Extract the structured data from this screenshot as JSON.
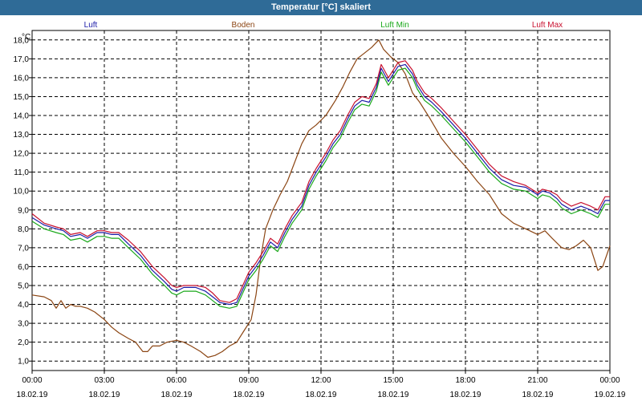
{
  "window": {
    "title": "Temperatur [°C] skaliert"
  },
  "chart_data": {
    "type": "line",
    "title": "Temperatur [°C] skaliert",
    "ylabel": "°C",
    "ylim": [
      0.5,
      18.5
    ],
    "yticks": [
      "1,0",
      "2,0",
      "3,0",
      "4,0",
      "5,0",
      "6,0",
      "7,0",
      "8,0",
      "9,0",
      "10,0",
      "11,0",
      "12,0",
      "13,0",
      "14,0",
      "15,0",
      "16,0",
      "17,0",
      "18,0"
    ],
    "xlim": [
      0,
      24
    ],
    "xticks": [
      {
        "time": "00:00",
        "date": "18.02.19"
      },
      {
        "time": "03:00",
        "date": "18.02.19"
      },
      {
        "time": "06:00",
        "date": "18.02.19"
      },
      {
        "time": "09:00",
        "date": "18.02.19"
      },
      {
        "time": "12:00",
        "date": "18.02.19"
      },
      {
        "time": "15:00",
        "date": "18.02.19"
      },
      {
        "time": "18:00",
        "date": "18.02.19"
      },
      {
        "time": "21:00",
        "date": "18.02.19"
      },
      {
        "time": "00:00",
        "date": "19.02.19"
      }
    ],
    "series": [
      {
        "name": "Luft",
        "color": "#1c1ca8",
        "points": [
          [
            0,
            8.6
          ],
          [
            0.5,
            8.2
          ],
          [
            1,
            8.0
          ],
          [
            1.3,
            7.9
          ],
          [
            1.6,
            7.6
          ],
          [
            2,
            7.7
          ],
          [
            2.3,
            7.5
          ],
          [
            2.7,
            7.8
          ],
          [
            3,
            7.8
          ],
          [
            3.3,
            7.7
          ],
          [
            3.6,
            7.7
          ],
          [
            4,
            7.2
          ],
          [
            4.5,
            6.6
          ],
          [
            5,
            5.8
          ],
          [
            5.5,
            5.2
          ],
          [
            5.8,
            4.8
          ],
          [
            6,
            4.7
          ],
          [
            6.3,
            4.9
          ],
          [
            6.8,
            4.9
          ],
          [
            7.2,
            4.7
          ],
          [
            7.5,
            4.4
          ],
          [
            7.8,
            4.1
          ],
          [
            8.2,
            4.0
          ],
          [
            8.5,
            4.1
          ],
          [
            9,
            5.5
          ],
          [
            9.3,
            6.0
          ],
          [
            9.6,
            6.6
          ],
          [
            9.9,
            7.3
          ],
          [
            10.2,
            7.0
          ],
          [
            10.5,
            7.8
          ],
          [
            10.8,
            8.5
          ],
          [
            11.2,
            9.2
          ],
          [
            11.5,
            10.3
          ],
          [
            11.8,
            11.0
          ],
          [
            12.2,
            11.8
          ],
          [
            12.5,
            12.5
          ],
          [
            12.8,
            13.0
          ],
          [
            13.1,
            13.8
          ],
          [
            13.4,
            14.5
          ],
          [
            13.7,
            14.8
          ],
          [
            14,
            14.7
          ],
          [
            14.3,
            15.5
          ],
          [
            14.5,
            16.5
          ],
          [
            14.8,
            15.8
          ],
          [
            15,
            16.2
          ],
          [
            15.2,
            16.6
          ],
          [
            15.5,
            16.7
          ],
          [
            15.8,
            16.2
          ],
          [
            16,
            15.6
          ],
          [
            16.3,
            15.0
          ],
          [
            16.6,
            14.7
          ],
          [
            17,
            14.2
          ],
          [
            17.5,
            13.5
          ],
          [
            18,
            12.8
          ],
          [
            18.5,
            12.0
          ],
          [
            19,
            11.2
          ],
          [
            19.5,
            10.6
          ],
          [
            20,
            10.3
          ],
          [
            20.5,
            10.2
          ],
          [
            21,
            9.8
          ],
          [
            21.2,
            10.0
          ],
          [
            21.5,
            9.9
          ],
          [
            21.8,
            9.6
          ],
          [
            22,
            9.3
          ],
          [
            22.4,
            9.0
          ],
          [
            22.8,
            9.2
          ],
          [
            23.2,
            9.0
          ],
          [
            23.5,
            8.8
          ],
          [
            23.8,
            9.5
          ],
          [
            24,
            9.5
          ]
        ]
      },
      {
        "name": "Boden",
        "color": "#8b4513",
        "points": [
          [
            0,
            4.5
          ],
          [
            0.5,
            4.4
          ],
          [
            0.8,
            4.2
          ],
          [
            1,
            3.8
          ],
          [
            1.2,
            4.2
          ],
          [
            1.4,
            3.8
          ],
          [
            1.6,
            4.0
          ],
          [
            1.8,
            3.9
          ],
          [
            2,
            3.9
          ],
          [
            2.3,
            3.8
          ],
          [
            2.6,
            3.6
          ],
          [
            3,
            3.2
          ],
          [
            3.3,
            2.8
          ],
          [
            3.6,
            2.5
          ],
          [
            4,
            2.2
          ],
          [
            4.3,
            2.0
          ],
          [
            4.6,
            1.5
          ],
          [
            4.8,
            1.5
          ],
          [
            5,
            1.8
          ],
          [
            5.3,
            1.8
          ],
          [
            5.6,
            2.0
          ],
          [
            6,
            2.1
          ],
          [
            6.3,
            2.0
          ],
          [
            6.6,
            1.8
          ],
          [
            7,
            1.5
          ],
          [
            7.3,
            1.2
          ],
          [
            7.6,
            1.3
          ],
          [
            7.9,
            1.5
          ],
          [
            8.2,
            1.8
          ],
          [
            8.5,
            2.0
          ],
          [
            8.8,
            2.6
          ],
          [
            9.1,
            3.2
          ],
          [
            9.3,
            4.5
          ],
          [
            9.5,
            6.5
          ],
          [
            9.7,
            8.0
          ],
          [
            10,
            9.0
          ],
          [
            10.3,
            9.8
          ],
          [
            10.6,
            10.5
          ],
          [
            10.9,
            11.5
          ],
          [
            11.2,
            12.5
          ],
          [
            11.5,
            13.2
          ],
          [
            11.8,
            13.5
          ],
          [
            12.2,
            14.0
          ],
          [
            12.6,
            14.8
          ],
          [
            12.9,
            15.5
          ],
          [
            13.2,
            16.3
          ],
          [
            13.5,
            17.0
          ],
          [
            13.8,
            17.3
          ],
          [
            14.1,
            17.6
          ],
          [
            14.4,
            18.0
          ],
          [
            14.6,
            17.5
          ],
          [
            14.9,
            17.1
          ],
          [
            15.2,
            16.8
          ],
          [
            15.5,
            16.2
          ],
          [
            15.8,
            15.2
          ],
          [
            16.1,
            14.7
          ],
          [
            16.5,
            13.9
          ],
          [
            17,
            12.8
          ],
          [
            17.5,
            12.0
          ],
          [
            18,
            11.3
          ],
          [
            18.5,
            10.5
          ],
          [
            19,
            9.8
          ],
          [
            19.5,
            8.8
          ],
          [
            20,
            8.3
          ],
          [
            20.5,
            8.0
          ],
          [
            21,
            7.7
          ],
          [
            21.3,
            7.9
          ],
          [
            21.6,
            7.5
          ],
          [
            22,
            7.0
          ],
          [
            22.3,
            6.9
          ],
          [
            22.6,
            7.1
          ],
          [
            22.9,
            7.4
          ],
          [
            23.2,
            7.0
          ],
          [
            23.5,
            5.8
          ],
          [
            23.7,
            6.0
          ],
          [
            24,
            7.1
          ]
        ]
      },
      {
        "name": "Luft Min",
        "color": "#1aa81a",
        "points": [
          [
            0,
            8.4
          ],
          [
            0.5,
            8.0
          ],
          [
            1,
            7.8
          ],
          [
            1.3,
            7.7
          ],
          [
            1.6,
            7.4
          ],
          [
            2,
            7.5
          ],
          [
            2.3,
            7.3
          ],
          [
            2.7,
            7.6
          ],
          [
            3,
            7.6
          ],
          [
            3.3,
            7.5
          ],
          [
            3.6,
            7.5
          ],
          [
            4,
            7.0
          ],
          [
            4.5,
            6.4
          ],
          [
            5,
            5.6
          ],
          [
            5.5,
            5.0
          ],
          [
            5.8,
            4.6
          ],
          [
            6,
            4.5
          ],
          [
            6.3,
            4.7
          ],
          [
            6.8,
            4.7
          ],
          [
            7.2,
            4.5
          ],
          [
            7.5,
            4.2
          ],
          [
            7.8,
            3.9
          ],
          [
            8.2,
            3.8
          ],
          [
            8.5,
            3.9
          ],
          [
            9,
            5.3
          ],
          [
            9.3,
            5.8
          ],
          [
            9.6,
            6.4
          ],
          [
            9.9,
            7.1
          ],
          [
            10.2,
            6.8
          ],
          [
            10.5,
            7.6
          ],
          [
            10.8,
            8.3
          ],
          [
            11.2,
            9.0
          ],
          [
            11.5,
            10.1
          ],
          [
            11.8,
            10.8
          ],
          [
            12.2,
            11.6
          ],
          [
            12.5,
            12.3
          ],
          [
            12.8,
            12.8
          ],
          [
            13.1,
            13.6
          ],
          [
            13.4,
            14.3
          ],
          [
            13.7,
            14.6
          ],
          [
            14,
            14.5
          ],
          [
            14.3,
            15.3
          ],
          [
            14.5,
            16.3
          ],
          [
            14.8,
            15.6
          ],
          [
            15,
            16.0
          ],
          [
            15.2,
            16.4
          ],
          [
            15.5,
            16.5
          ],
          [
            15.8,
            16.0
          ],
          [
            16,
            15.4
          ],
          [
            16.3,
            14.8
          ],
          [
            16.6,
            14.5
          ],
          [
            17,
            14.0
          ],
          [
            17.5,
            13.3
          ],
          [
            18,
            12.6
          ],
          [
            18.5,
            11.8
          ],
          [
            19,
            11.0
          ],
          [
            19.5,
            10.4
          ],
          [
            20,
            10.1
          ],
          [
            20.5,
            10.0
          ],
          [
            21,
            9.6
          ],
          [
            21.2,
            9.8
          ],
          [
            21.5,
            9.7
          ],
          [
            21.8,
            9.4
          ],
          [
            22,
            9.1
          ],
          [
            22.4,
            8.8
          ],
          [
            22.8,
            9.0
          ],
          [
            23.2,
            8.8
          ],
          [
            23.5,
            8.6
          ],
          [
            23.8,
            9.3
          ],
          [
            24,
            9.3
          ]
        ]
      },
      {
        "name": "Luft Max",
        "color": "#c8102e",
        "points": [
          [
            0,
            8.8
          ],
          [
            0.5,
            8.3
          ],
          [
            1,
            8.1
          ],
          [
            1.3,
            8.0
          ],
          [
            1.6,
            7.7
          ],
          [
            2,
            7.8
          ],
          [
            2.3,
            7.6
          ],
          [
            2.7,
            7.9
          ],
          [
            3,
            7.9
          ],
          [
            3.3,
            7.8
          ],
          [
            3.6,
            7.8
          ],
          [
            4,
            7.4
          ],
          [
            4.5,
            6.8
          ],
          [
            5,
            6.0
          ],
          [
            5.5,
            5.4
          ],
          [
            5.8,
            5.0
          ],
          [
            6,
            4.9
          ],
          [
            6.3,
            5.0
          ],
          [
            6.8,
            5.0
          ],
          [
            7.2,
            4.9
          ],
          [
            7.5,
            4.6
          ],
          [
            7.8,
            4.2
          ],
          [
            8.2,
            4.1
          ],
          [
            8.5,
            4.3
          ],
          [
            9,
            5.7
          ],
          [
            9.3,
            6.2
          ],
          [
            9.6,
            6.8
          ],
          [
            9.9,
            7.5
          ],
          [
            10.2,
            7.2
          ],
          [
            10.5,
            8.0
          ],
          [
            10.8,
            8.7
          ],
          [
            11.2,
            9.4
          ],
          [
            11.5,
            10.5
          ],
          [
            11.8,
            11.2
          ],
          [
            12.2,
            12.0
          ],
          [
            12.5,
            12.7
          ],
          [
            12.8,
            13.2
          ],
          [
            13.1,
            14.0
          ],
          [
            13.4,
            14.7
          ],
          [
            13.7,
            15.0
          ],
          [
            14,
            14.9
          ],
          [
            14.3,
            15.7
          ],
          [
            14.5,
            16.7
          ],
          [
            14.8,
            16.0
          ],
          [
            15,
            16.4
          ],
          [
            15.2,
            16.8
          ],
          [
            15.5,
            16.9
          ],
          [
            15.8,
            16.4
          ],
          [
            16,
            15.8
          ],
          [
            16.3,
            15.2
          ],
          [
            16.6,
            14.9
          ],
          [
            17,
            14.4
          ],
          [
            17.5,
            13.7
          ],
          [
            18,
            13.0
          ],
          [
            18.5,
            12.2
          ],
          [
            19,
            11.4
          ],
          [
            19.5,
            10.8
          ],
          [
            20,
            10.5
          ],
          [
            20.5,
            10.3
          ],
          [
            21,
            9.9
          ],
          [
            21.2,
            10.1
          ],
          [
            21.5,
            10.0
          ],
          [
            21.8,
            9.8
          ],
          [
            22,
            9.5
          ],
          [
            22.4,
            9.2
          ],
          [
            22.8,
            9.4
          ],
          [
            23.2,
            9.2
          ],
          [
            23.5,
            9.0
          ],
          [
            23.8,
            9.7
          ],
          [
            24,
            9.7
          ]
        ]
      }
    ]
  }
}
